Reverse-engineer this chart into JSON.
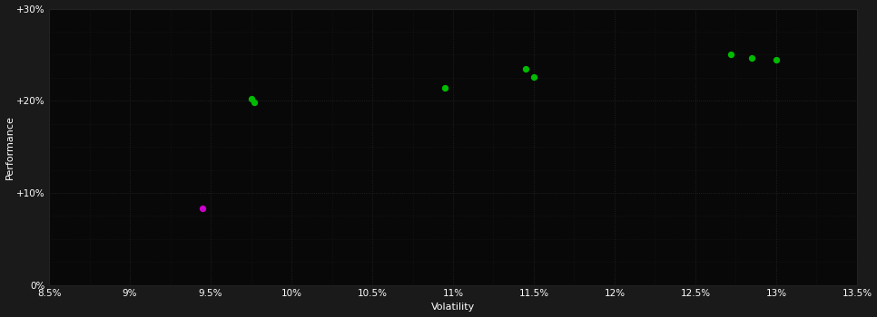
{
  "background_color": "#1a1a1a",
  "plot_bg_color": "#080808",
  "grid_color": "#2a2a2a",
  "text_color": "#ffffff",
  "xlabel": "Volatility",
  "ylabel": "Performance",
  "xlim": [
    0.085,
    0.135
  ],
  "ylim": [
    0.0,
    0.3
  ],
  "xticks": [
    0.085,
    0.09,
    0.095,
    0.1,
    0.105,
    0.11,
    0.115,
    0.12,
    0.125,
    0.13,
    0.135
  ],
  "yticks": [
    0.0,
    0.1,
    0.2,
    0.3
  ],
  "ytick_labels": [
    "0%",
    "+10%",
    "+20%",
    "+30%"
  ],
  "xtick_labels": [
    "8.5%",
    "9%",
    "9.5%",
    "10%",
    "10.5%",
    "11%",
    "11.5%",
    "12%",
    "12.5%",
    "13%",
    "13.5%"
  ],
  "minor_xtick_step": 0.0025,
  "minor_ytick_step": 0.025,
  "green_points": [
    [
      0.0975,
      0.202
    ],
    [
      0.0977,
      0.198
    ],
    [
      0.1095,
      0.214
    ],
    [
      0.1145,
      0.235
    ],
    [
      0.115,
      0.226
    ],
    [
      0.1272,
      0.25
    ],
    [
      0.1285,
      0.246
    ],
    [
      0.13,
      0.245
    ]
  ],
  "magenta_points": [
    [
      0.0945,
      0.083
    ]
  ],
  "green_color": "#00bb00",
  "magenta_color": "#cc00cc",
  "point_size": 18,
  "figsize": [
    9.66,
    3.5
  ],
  "dpi": 100
}
